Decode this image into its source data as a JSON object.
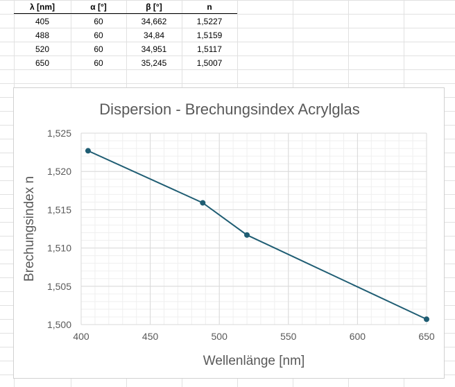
{
  "table": {
    "headers": [
      "λ [nm]",
      "α [°]",
      "β [°]",
      "n"
    ],
    "rows": [
      [
        "405",
        "60",
        "34,662",
        "1,5227"
      ],
      [
        "488",
        "60",
        "34,84",
        "1,5159"
      ],
      [
        "520",
        "60",
        "34,951",
        "1,5117"
      ],
      [
        "650",
        "60",
        "35,245",
        "1,5007"
      ]
    ]
  },
  "colors": {
    "series_line": "#1f5d73",
    "series_marker": "#1f5d73",
    "major_grid": "#d9d9d9",
    "minor_grid": "#efefef",
    "text": "#595959",
    "sheet_grid": "#e1e1e1"
  },
  "chart_data": {
    "type": "scatter",
    "title": "Dispersion - Brechungsindex Acrylglas",
    "xlabel": "Wellenlänge [nm]",
    "ylabel": "Brechungsindex n",
    "xlim": [
      400,
      650
    ],
    "ylim": [
      1.5,
      1.525
    ],
    "xticks": [
      400,
      450,
      500,
      550,
      600,
      650
    ],
    "xtick_labels": [
      "400",
      "450",
      "500",
      "550",
      "600",
      "650"
    ],
    "yticks": [
      1.5,
      1.505,
      1.51,
      1.515,
      1.52,
      1.525
    ],
    "ytick_labels": [
      "1,500",
      "1,505",
      "1,510",
      "1,515",
      "1,520",
      "1,525"
    ],
    "grid": true,
    "minor_grid": true,
    "series": [
      {
        "x": [
          405,
          488,
          520,
          650
        ],
        "y": [
          1.5227,
          1.5159,
          1.5117,
          1.5007
        ],
        "style": "lines+markers"
      }
    ]
  }
}
